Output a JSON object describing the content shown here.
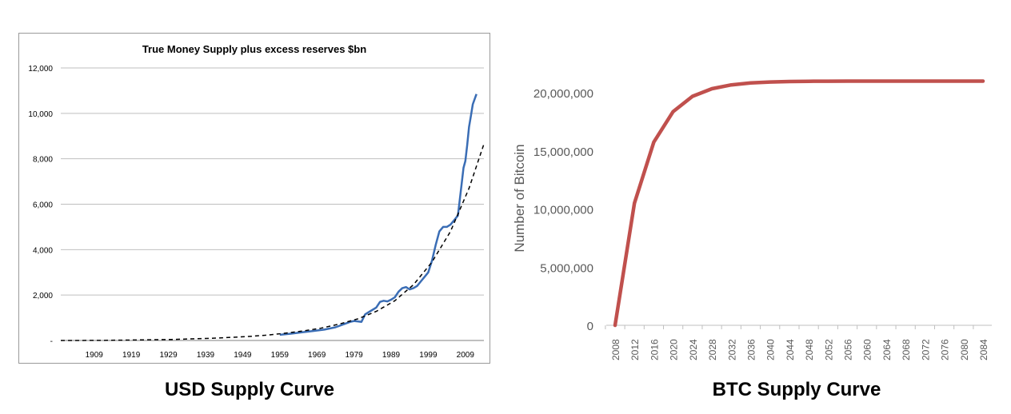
{
  "captions": {
    "usd": "USD Supply Curve",
    "btc": "BTC Supply Curve"
  },
  "chart_data": [
    {
      "type": "line",
      "title": "True Money Supply plus excess reserves $bn",
      "xlabel": "",
      "ylabel": "",
      "xlim": [
        1900,
        2014
      ],
      "ylim": [
        0,
        12000
      ],
      "x_ticks": [
        "1909",
        "1919",
        "1929",
        "1939",
        "1949",
        "1959",
        "1969",
        "1979",
        "1989",
        "1999",
        "2009"
      ],
      "x_tick_values": [
        1909,
        1919,
        1929,
        1939,
        1949,
        1959,
        1969,
        1979,
        1989,
        1999,
        2009
      ],
      "y_ticks": [
        "-",
        "2,000",
        "4,000",
        "6,000",
        "8,000",
        "10,000",
        "12,000"
      ],
      "y_tick_values": [
        0,
        2000,
        4000,
        6000,
        8000,
        10000,
        12000
      ],
      "grid": "horizontal",
      "series": [
        {
          "style": "solid",
          "color": "#3a6db5",
          "x": [
            1959,
            1962,
            1965,
            1968,
            1971,
            1974,
            1976,
            1978,
            1979,
            1980,
            1981,
            1982,
            1983,
            1985,
            1986,
            1987,
            1988,
            1989,
            1990,
            1991,
            1992,
            1993,
            1994,
            1995,
            1996,
            1997,
            1998,
            1999,
            2000,
            2001,
            2002,
            2003,
            2004,
            2005,
            2006,
            2007,
            2008,
            2008.5,
            2009,
            2009.5,
            2010,
            2010.5,
            2011,
            2012
          ],
          "values": [
            250,
            300,
            360,
            420,
            480,
            580,
            700,
            820,
            860,
            840,
            820,
            1150,
            1250,
            1450,
            1700,
            1750,
            1720,
            1800,
            1900,
            2150,
            2300,
            2350,
            2250,
            2300,
            2400,
            2600,
            2800,
            3000,
            3500,
            4200,
            4800,
            5000,
            5000,
            5100,
            5300,
            5500,
            6900,
            7600,
            7900,
            8600,
            9400,
            9900,
            10400,
            10850
          ]
        },
        {
          "style": "dashed",
          "color": "#000000",
          "x": [
            1900,
            1910,
            1920,
            1930,
            1940,
            1950,
            1955,
            1960,
            1965,
            1970,
            1975,
            1980,
            1985,
            1990,
            1995,
            2000,
            2005,
            2010,
            2014
          ],
          "values": [
            0,
            5,
            20,
            45,
            90,
            170,
            230,
            310,
            410,
            540,
            720,
            950,
            1280,
            1750,
            2450,
            3450,
            4800,
            6700,
            8650
          ]
        }
      ]
    },
    {
      "type": "line",
      "title": "",
      "xlabel": "",
      "ylabel": "Number of Bitcoin",
      "ylim": [
        0,
        21000000
      ],
      "y_ticks": [
        "0",
        "5,000,000",
        "10,000,000",
        "15,000,000",
        "20,000,000"
      ],
      "y_tick_values": [
        0,
        5000000,
        10000000,
        15000000,
        20000000
      ],
      "categories": [
        "2008",
        "2012",
        "2016",
        "2020",
        "2024",
        "2028",
        "2032",
        "2036",
        "2040",
        "2044",
        "2048",
        "2052",
        "2056",
        "2060",
        "2064",
        "2068",
        "2072",
        "2076",
        "2080",
        "2084"
      ],
      "grid": "none",
      "series": [
        {
          "color": "#c0504d",
          "values": [
            0,
            10500000,
            15750000,
            18375000,
            19687500,
            20343750,
            20671875,
            20835938,
            20917969,
            20958984,
            20979492,
            20989746,
            20994873,
            20997437,
            20998718,
            20999359,
            20999680,
            20999840,
            20999920,
            20999960
          ]
        }
      ]
    }
  ]
}
